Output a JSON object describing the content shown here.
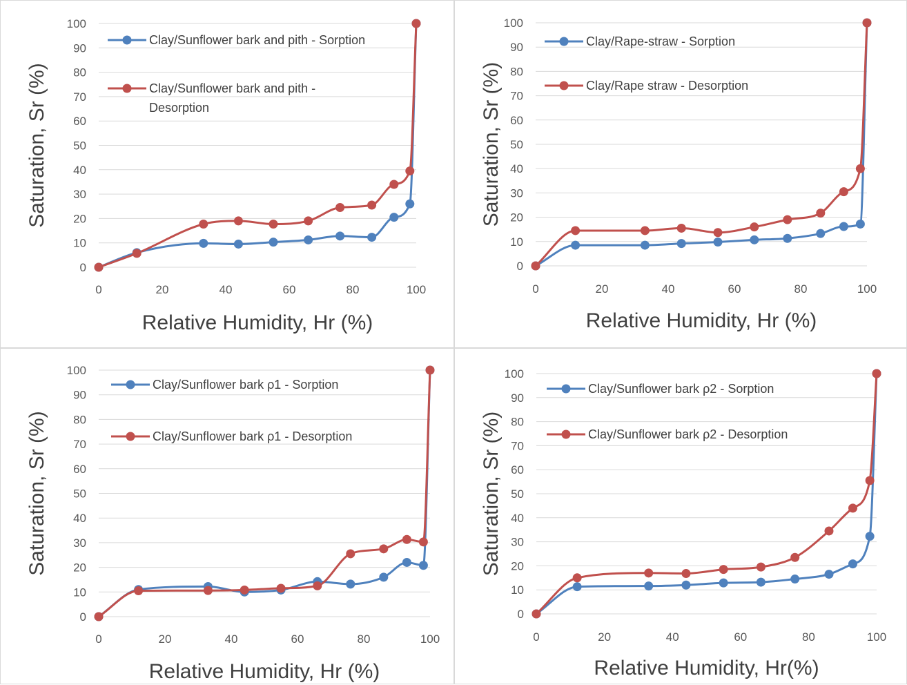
{
  "colors": {
    "sorption": "#4f81bd",
    "desorption": "#c0504d",
    "grid": "#d9d9d9",
    "text": "#595959"
  },
  "chart_data": [
    {
      "type": "line",
      "xlabel": "Relative Humidity, Hr (%)",
      "ylabel": "Saturation, Sr (%)",
      "xlim": [
        0,
        100
      ],
      "ylim": [
        0,
        100
      ],
      "xticks": [
        0,
        20,
        40,
        60,
        80,
        100
      ],
      "yticks": [
        0,
        10,
        20,
        30,
        40,
        50,
        60,
        70,
        80,
        90,
        100
      ],
      "grid": true,
      "legend_position": "top-left",
      "series": [
        {
          "name": "Clay/Sunflower bark and pith - Sorption",
          "legend_lines": [
            "Clay/Sunflower bark and pith - Sorption"
          ],
          "color": "#4f81bd",
          "x": [
            0,
            12,
            33,
            44,
            55,
            66,
            76,
            86,
            93,
            98,
            100
          ],
          "y": [
            0,
            6,
            9.8,
            9.5,
            10.3,
            11.2,
            12.8,
            12.3,
            20.5,
            26,
            100
          ]
        },
        {
          "name": "Clay/Sunflower bark and pith - Desorption",
          "legend_lines": [
            "Clay/Sunflower bark and pith -",
            "Desorption"
          ],
          "color": "#c0504d",
          "x": [
            0,
            12,
            33,
            44,
            55,
            66,
            76,
            86,
            93,
            98,
            100
          ],
          "y": [
            0,
            5.7,
            17.7,
            19,
            17.7,
            19,
            24.5,
            25.5,
            34,
            39.5,
            100
          ]
        }
      ]
    },
    {
      "type": "line",
      "xlabel": "Relative Humidity, Hr (%)",
      "ylabel": "Saturation, Sr (%)",
      "xlim": [
        0,
        100
      ],
      "ylim": [
        0,
        100
      ],
      "xticks": [
        0,
        20,
        40,
        60,
        80,
        100
      ],
      "yticks": [
        0,
        10,
        20,
        30,
        40,
        50,
        60,
        70,
        80,
        90,
        100
      ],
      "grid": true,
      "legend_position": "top-left",
      "series": [
        {
          "name": "Clay/Rape-straw - Sorption",
          "legend_lines": [
            "Clay/Rape-straw - Sorption"
          ],
          "color": "#4f81bd",
          "x": [
            0,
            12,
            33,
            44,
            55,
            66,
            76,
            86,
            93,
            98,
            100
          ],
          "y": [
            0,
            8.5,
            8.5,
            9.2,
            9.8,
            10.7,
            11.3,
            13.3,
            16.2,
            17.2,
            100
          ]
        },
        {
          "name": "Clay/Rape straw - Desorption",
          "legend_lines": [
            "Clay/Rape straw - Desorption"
          ],
          "color": "#c0504d",
          "x": [
            0,
            12,
            33,
            44,
            55,
            66,
            76,
            86,
            93,
            98,
            100
          ],
          "y": [
            0,
            14.5,
            14.5,
            15.5,
            13.7,
            16,
            19,
            21.7,
            30.5,
            40,
            100
          ]
        }
      ]
    },
    {
      "type": "line",
      "xlabel": "Relative Humidity, Hr (%)",
      "ylabel": "Saturation, Sr (%)",
      "xlim": [
        0,
        100
      ],
      "ylim": [
        0,
        100
      ],
      "xticks": [
        0,
        20,
        40,
        60,
        80,
        100
      ],
      "yticks": [
        0,
        10,
        20,
        30,
        40,
        50,
        60,
        70,
        80,
        90,
        100
      ],
      "grid": true,
      "legend_position": "top-left",
      "series": [
        {
          "name": "Clay/Sunflower bark ρ1 - Sorption",
          "legend_lines": [
            "Clay/Sunflower bark ρ1 - Sorption"
          ],
          "color": "#4f81bd",
          "x": [
            0,
            12,
            33,
            44,
            55,
            66,
            76,
            86,
            93,
            98,
            100
          ],
          "y": [
            0,
            11,
            12.2,
            10,
            10.8,
            14.2,
            13.2,
            16,
            22,
            20.8,
            100
          ]
        },
        {
          "name": "Clay/Sunflower bark ρ1 - Desorption",
          "legend_lines": [
            "Clay/Sunflower bark ρ1 - Desorption"
          ],
          "color": "#c0504d",
          "x": [
            0,
            12,
            33,
            44,
            55,
            66,
            76,
            86,
            93,
            98,
            100
          ],
          "y": [
            0,
            10.5,
            10.6,
            10.8,
            11.5,
            12.5,
            25.5,
            27.5,
            31.3,
            30.3,
            100
          ]
        }
      ]
    },
    {
      "type": "line",
      "xlabel": "Relative Humidity, Hr(%)",
      "ylabel": "Saturation, Sr (%)",
      "xlim": [
        0,
        100
      ],
      "ylim": [
        0,
        100
      ],
      "xticks": [
        0,
        20,
        40,
        60,
        80,
        100
      ],
      "yticks": [
        0,
        10,
        20,
        30,
        40,
        50,
        60,
        70,
        80,
        90,
        100
      ],
      "grid": true,
      "legend_position": "top-left",
      "series": [
        {
          "name": "Clay/Sunflower bark ρ2 - Sorption",
          "legend_lines": [
            "Clay/Sunflower bark ρ2 - Sorption"
          ],
          "color": "#4f81bd",
          "x": [
            0,
            12,
            33,
            44,
            55,
            66,
            76,
            86,
            93,
            98,
            100
          ],
          "y": [
            0,
            11.3,
            11.6,
            12,
            12.9,
            13.2,
            14.5,
            16.5,
            20.8,
            32.3,
            100
          ]
        },
        {
          "name": "Clay/Sunflower bark ρ2 - Desorption",
          "legend_lines": [
            "Clay/Sunflower bark ρ2 - Desorption"
          ],
          "color": "#c0504d",
          "x": [
            0,
            12,
            33,
            44,
            55,
            66,
            76,
            86,
            93,
            98,
            100
          ],
          "y": [
            0,
            15,
            17,
            16.8,
            18.5,
            19.5,
            23.5,
            34.5,
            44,
            55.5,
            100
          ]
        }
      ]
    }
  ]
}
